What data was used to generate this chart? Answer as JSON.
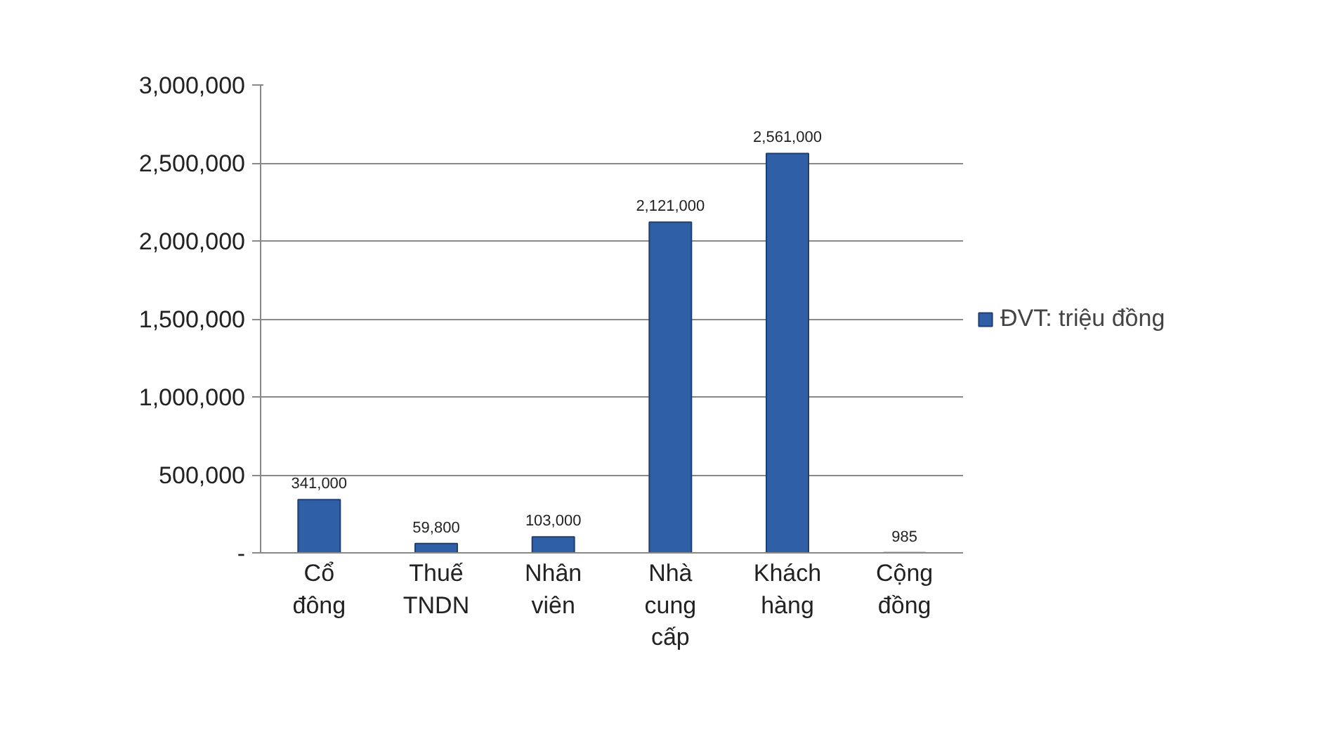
{
  "chart_data": {
    "type": "bar",
    "categories": [
      "Cổ đông",
      "Thuế TNDN",
      "Nhân viên",
      "Nhà cung cấp",
      "Khách hàng",
      "Cộng đồng"
    ],
    "series": [
      {
        "name": "ĐVT: triệu đồng",
        "color": "#2f5fa7",
        "values": [
          341000,
          59800,
          103000,
          2121000,
          2561000,
          985
        ],
        "value_labels": [
          "341,000",
          "59,800",
          "103,000",
          "2,121,000",
          "2,561,000",
          "985"
        ]
      }
    ],
    "ylim": [
      0,
      3000000
    ],
    "yticks": [
      {
        "value": 0,
        "label": "-"
      },
      {
        "value": 500000,
        "label": "500,000"
      },
      {
        "value": 1000000,
        "label": "1,000,000"
      },
      {
        "value": 1500000,
        "label": "1,500,000"
      },
      {
        "value": 2000000,
        "label": "2,000,000"
      },
      {
        "value": 2500000,
        "label": "2,500,000"
      },
      {
        "value": 3000000,
        "label": "3,000,000"
      }
    ],
    "grid": "y",
    "legend": "right"
  }
}
